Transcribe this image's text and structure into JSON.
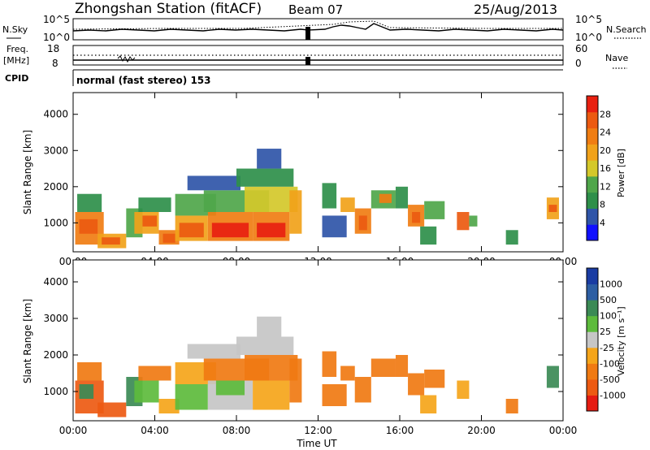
{
  "header": {
    "station": "Zhongshan Station (fitACF)",
    "beam": "Beam 07",
    "date": "25/Aug/2013"
  },
  "labels": {
    "n_sky": "N.Sky",
    "freq": "Freq.",
    "mhz": "[MHz]",
    "cpid": "CPID",
    "n_search": "N.Search",
    "nave": "Nave",
    "cpid_text": "normal (fast stereo) 153",
    "x_axis": "Time UT"
  },
  "noise_panel": {
    "left_ticks": [
      "10^5",
      "10^0"
    ],
    "right_ticks": [
      "10^5",
      "10^0"
    ]
  },
  "freq_panel": {
    "left_ticks": [
      "18",
      "8"
    ],
    "right_ticks": [
      "60",
      "0"
    ]
  },
  "colors": {
    "power_scale": [
      "#1010ff",
      "#2f55a8",
      "#2e8f4a",
      "#4fa64a",
      "#d4c82a",
      "#f1a21a",
      "#f07d12",
      "#ec5a10",
      "#e82010"
    ],
    "velocity_scale": [
      "#e51b12",
      "#ed5a12",
      "#f07a12",
      "#f5a51a",
      "#c6c6c6",
      "#5dbb3c",
      "#3b8a55",
      "#2d5ea3",
      "#1a3ca3"
    ]
  },
  "chart_data": [
    {
      "type": "heatmap",
      "name": "power-panel",
      "ylabel": "Slant Range [km]",
      "xlabel": "Time UT",
      "x_ticks": [
        "00:00",
        "04:00",
        "08:00",
        "12:00",
        "16:00",
        "20:00",
        "00:00"
      ],
      "y_ticks": [
        1000,
        2000,
        3000,
        4000
      ],
      "ylim": [
        200,
        4600
      ],
      "xlim_hours": [
        0,
        24
      ],
      "colorbar": {
        "label": "Power [dB]",
        "ticks": [
          4,
          8,
          12,
          16,
          20,
          24,
          28
        ],
        "range": [
          0,
          32
        ]
      },
      "cells": [
        {
          "t0": 0.1,
          "t1": 1.5,
          "r0": 400,
          "r1": 1300,
          "v": 22
        },
        {
          "t0": 0.3,
          "t1": 1.2,
          "r0": 700,
          "r1": 1100,
          "v": 28
        },
        {
          "t0": 0.2,
          "t1": 1.4,
          "r0": 1300,
          "r1": 1800,
          "v": 10
        },
        {
          "t0": 1.2,
          "t1": 2.6,
          "r0": 300,
          "r1": 700,
          "v": 20
        },
        {
          "t0": 1.4,
          "t1": 2.3,
          "r0": 400,
          "r1": 600,
          "v": 28
        },
        {
          "t0": 2.6,
          "t1": 3.4,
          "r0": 600,
          "r1": 1400,
          "v": 12
        },
        {
          "t0": 3.0,
          "t1": 4.2,
          "r0": 700,
          "r1": 1300,
          "v": 20
        },
        {
          "t0": 3.4,
          "t1": 4.1,
          "r0": 900,
          "r1": 1200,
          "v": 28
        },
        {
          "t0": 3.2,
          "t1": 4.8,
          "r0": 1300,
          "r1": 1700,
          "v": 10
        },
        {
          "t0": 4.2,
          "t1": 5.2,
          "r0": 400,
          "r1": 800,
          "v": 22
        },
        {
          "t0": 4.4,
          "t1": 5.0,
          "r0": 450,
          "r1": 700,
          "v": 28
        },
        {
          "t0": 5.0,
          "t1": 6.6,
          "r0": 500,
          "r1": 1200,
          "v": 20
        },
        {
          "t0": 5.2,
          "t1": 6.4,
          "r0": 600,
          "r1": 1000,
          "v": 27
        },
        {
          "t0": 5.0,
          "t1": 7.0,
          "r0": 1200,
          "r1": 1800,
          "v": 12
        },
        {
          "t0": 6.6,
          "t1": 8.8,
          "r0": 500,
          "r1": 1300,
          "v": 23
        },
        {
          "t0": 6.8,
          "t1": 8.6,
          "r0": 600,
          "r1": 1000,
          "v": 29
        },
        {
          "t0": 6.4,
          "t1": 9.6,
          "r0": 1300,
          "r1": 1900,
          "v": 14
        },
        {
          "t0": 5.6,
          "t1": 8.2,
          "r0": 1900,
          "r1": 2300,
          "v": 6
        },
        {
          "t0": 8.8,
          "t1": 10.6,
          "r0": 500,
          "r1": 1300,
          "v": 24
        },
        {
          "t0": 9.0,
          "t1": 10.4,
          "r0": 600,
          "r1": 1000,
          "v": 29
        },
        {
          "t0": 8.4,
          "t1": 11.0,
          "r0": 1300,
          "r1": 2000,
          "v": 15
        },
        {
          "t0": 8.0,
          "t1": 10.8,
          "r0": 2000,
          "r1": 2500,
          "v": 8
        },
        {
          "t0": 9.0,
          "t1": 10.2,
          "r0": 2500,
          "r1": 3050,
          "v": 5
        },
        {
          "t0": 10.6,
          "t1": 11.2,
          "r0": 700,
          "r1": 1900,
          "v": 18
        },
        {
          "t0": 12.2,
          "t1": 12.9,
          "r0": 1400,
          "r1": 2100,
          "v": 8
        },
        {
          "t0": 12.2,
          "t1": 13.4,
          "r0": 600,
          "r1": 1200,
          "v": 6
        },
        {
          "t0": 13.1,
          "t1": 13.8,
          "r0": 1300,
          "r1": 1700,
          "v": 18
        },
        {
          "t0": 13.8,
          "t1": 14.6,
          "r0": 700,
          "r1": 1400,
          "v": 24
        },
        {
          "t0": 14.0,
          "t1": 14.4,
          "r0": 800,
          "r1": 1200,
          "v": 28
        },
        {
          "t0": 14.6,
          "t1": 15.8,
          "r0": 1400,
          "r1": 1900,
          "v": 14
        },
        {
          "t0": 15.0,
          "t1": 15.6,
          "r0": 1550,
          "r1": 1800,
          "v": 24
        },
        {
          "t0": 15.8,
          "t1": 16.4,
          "r0": 1400,
          "r1": 2000,
          "v": 10
        },
        {
          "t0": 16.4,
          "t1": 17.2,
          "r0": 900,
          "r1": 1500,
          "v": 24
        },
        {
          "t0": 16.6,
          "t1": 17.0,
          "r0": 1000,
          "r1": 1300,
          "v": 28
        },
        {
          "t0": 17.2,
          "t1": 18.2,
          "r0": 1100,
          "r1": 1600,
          "v": 14
        },
        {
          "t0": 17.0,
          "t1": 17.8,
          "r0": 400,
          "r1": 900,
          "v": 8
        },
        {
          "t0": 18.8,
          "t1": 19.4,
          "r0": 800,
          "r1": 1300,
          "v": 26
        },
        {
          "t0": 19.4,
          "t1": 19.8,
          "r0": 900,
          "r1": 1200,
          "v": 12
        },
        {
          "t0": 21.2,
          "t1": 21.8,
          "r0": 400,
          "r1": 800,
          "v": 8
        },
        {
          "t0": 23.2,
          "t1": 23.8,
          "r0": 1100,
          "r1": 1700,
          "v": 20
        },
        {
          "t0": 23.3,
          "t1": 23.7,
          "r0": 1300,
          "r1": 1500,
          "v": 28
        }
      ]
    },
    {
      "type": "heatmap",
      "name": "velocity-panel",
      "ylabel": "Slant Range [km]",
      "xlabel": "Time UT",
      "x_ticks": [
        "00:00",
        "04:00",
        "08:00",
        "12:00",
        "16:00",
        "20:00",
        "00:00"
      ],
      "y_ticks": [
        1000,
        2000,
        3000,
        4000
      ],
      "ylim": [
        200,
        4600
      ],
      "xlim_hours": [
        0,
        24
      ],
      "colorbar": {
        "label": "Velocity [m s⁻¹]",
        "ticks": [
          "-1000",
          "-500",
          "-100",
          "-25",
          "25",
          "100",
          "500",
          "1000"
        ]
      },
      "cells": [
        {
          "t0": 0.1,
          "t1": 1.5,
          "r0": 400,
          "r1": 1300,
          "v": 1
        },
        {
          "t0": 0.3,
          "t1": 1.0,
          "r0": 800,
          "r1": 1200,
          "v": 6
        },
        {
          "t0": 0.2,
          "t1": 1.4,
          "r0": 1300,
          "r1": 1800,
          "v": 2
        },
        {
          "t0": 1.2,
          "t1": 2.6,
          "r0": 300,
          "r1": 700,
          "v": 1
        },
        {
          "t0": 2.6,
          "t1": 3.4,
          "r0": 600,
          "r1": 1400,
          "v": 6
        },
        {
          "t0": 3.0,
          "t1": 4.2,
          "r0": 700,
          "r1": 1300,
          "v": 5
        },
        {
          "t0": 3.2,
          "t1": 4.8,
          "r0": 1300,
          "r1": 1700,
          "v": 2
        },
        {
          "t0": 4.2,
          "t1": 5.2,
          "r0": 400,
          "r1": 800,
          "v": 3
        },
        {
          "t0": 5.0,
          "t1": 6.6,
          "r0": 500,
          "r1": 1200,
          "v": 5
        },
        {
          "t0": 5.0,
          "t1": 7.0,
          "r0": 1200,
          "r1": 1800,
          "v": 3
        },
        {
          "t0": 6.6,
          "t1": 8.8,
          "r0": 500,
          "r1": 1300,
          "v": 4
        },
        {
          "t0": 7.0,
          "t1": 8.4,
          "r0": 900,
          "r1": 1300,
          "v": 5
        },
        {
          "t0": 6.4,
          "t1": 9.6,
          "r0": 1300,
          "r1": 1900,
          "v": 2
        },
        {
          "t0": 5.6,
          "t1": 8.2,
          "r0": 1900,
          "r1": 2300,
          "v": 4
        },
        {
          "t0": 8.8,
          "t1": 10.6,
          "r0": 500,
          "r1": 1300,
          "v": 3
        },
        {
          "t0": 8.4,
          "t1": 11.0,
          "r0": 1300,
          "r1": 2000,
          "v": 2
        },
        {
          "t0": 8.0,
          "t1": 10.8,
          "r0": 2000,
          "r1": 2500,
          "v": 4
        },
        {
          "t0": 9.0,
          "t1": 10.2,
          "r0": 2500,
          "r1": 3050,
          "v": 4
        },
        {
          "t0": 10.6,
          "t1": 11.2,
          "r0": 700,
          "r1": 1900,
          "v": 2
        },
        {
          "t0": 12.2,
          "t1": 12.9,
          "r0": 1400,
          "r1": 2100,
          "v": 2
        },
        {
          "t0": 12.2,
          "t1": 13.4,
          "r0": 600,
          "r1": 1200,
          "v": 2
        },
        {
          "t0": 13.1,
          "t1": 13.8,
          "r0": 1300,
          "r1": 1700,
          "v": 2
        },
        {
          "t0": 13.8,
          "t1": 14.6,
          "r0": 700,
          "r1": 1400,
          "v": 2
        },
        {
          "t0": 14.6,
          "t1": 15.8,
          "r0": 1400,
          "r1": 1900,
          "v": 2
        },
        {
          "t0": 15.8,
          "t1": 16.4,
          "r0": 1400,
          "r1": 2000,
          "v": 2
        },
        {
          "t0": 16.4,
          "t1": 17.2,
          "r0": 900,
          "r1": 1500,
          "v": 2
        },
        {
          "t0": 17.2,
          "t1": 18.2,
          "r0": 1100,
          "r1": 1600,
          "v": 2
        },
        {
          "t0": 17.0,
          "t1": 17.8,
          "r0": 400,
          "r1": 900,
          "v": 3
        },
        {
          "t0": 18.8,
          "t1": 19.4,
          "r0": 800,
          "r1": 1300,
          "v": 3
        },
        {
          "t0": 21.2,
          "t1": 21.8,
          "r0": 400,
          "r1": 800,
          "v": 2
        },
        {
          "t0": 23.2,
          "t1": 23.8,
          "r0": 1100,
          "r1": 1700,
          "v": 6
        }
      ]
    }
  ]
}
